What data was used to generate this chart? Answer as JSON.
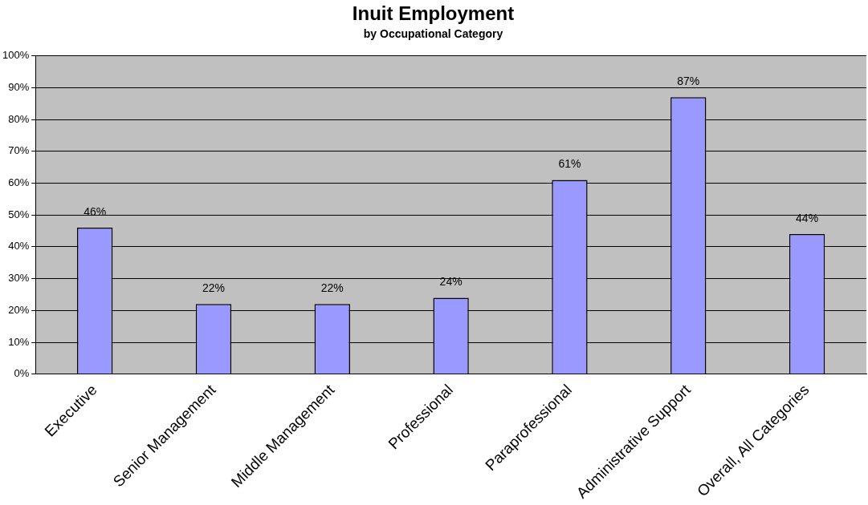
{
  "chart_data": {
    "type": "bar",
    "title": "Inuit Employment",
    "subtitle": "by Occupational Category",
    "categories": [
      "Executive",
      "Senior Management",
      "Middle Management",
      "Professional",
      "Paraprofessional",
      "Administrative Support",
      "Overall, All Categories"
    ],
    "values": [
      46,
      22,
      22,
      24,
      61,
      87,
      44
    ],
    "value_labels": [
      "46%",
      "22%",
      "22%",
      "24%",
      "61%",
      "87%",
      "44%"
    ],
    "color": "#9999ff",
    "ylim": [
      0,
      100
    ],
    "yticks": [
      {
        "value": 0,
        "label": "0%"
      },
      {
        "value": 10,
        "label": "10%"
      },
      {
        "value": 20,
        "label": "20%"
      },
      {
        "value": 30,
        "label": "30%"
      },
      {
        "value": 40,
        "label": "40%"
      },
      {
        "value": 50,
        "label": "50%"
      },
      {
        "value": 60,
        "label": "60%"
      },
      {
        "value": 70,
        "label": "70%"
      },
      {
        "value": 80,
        "label": "80%"
      },
      {
        "value": 90,
        "label": "90%"
      },
      {
        "value": 100,
        "label": "100%"
      }
    ],
    "grid": "y",
    "legend": false
  }
}
